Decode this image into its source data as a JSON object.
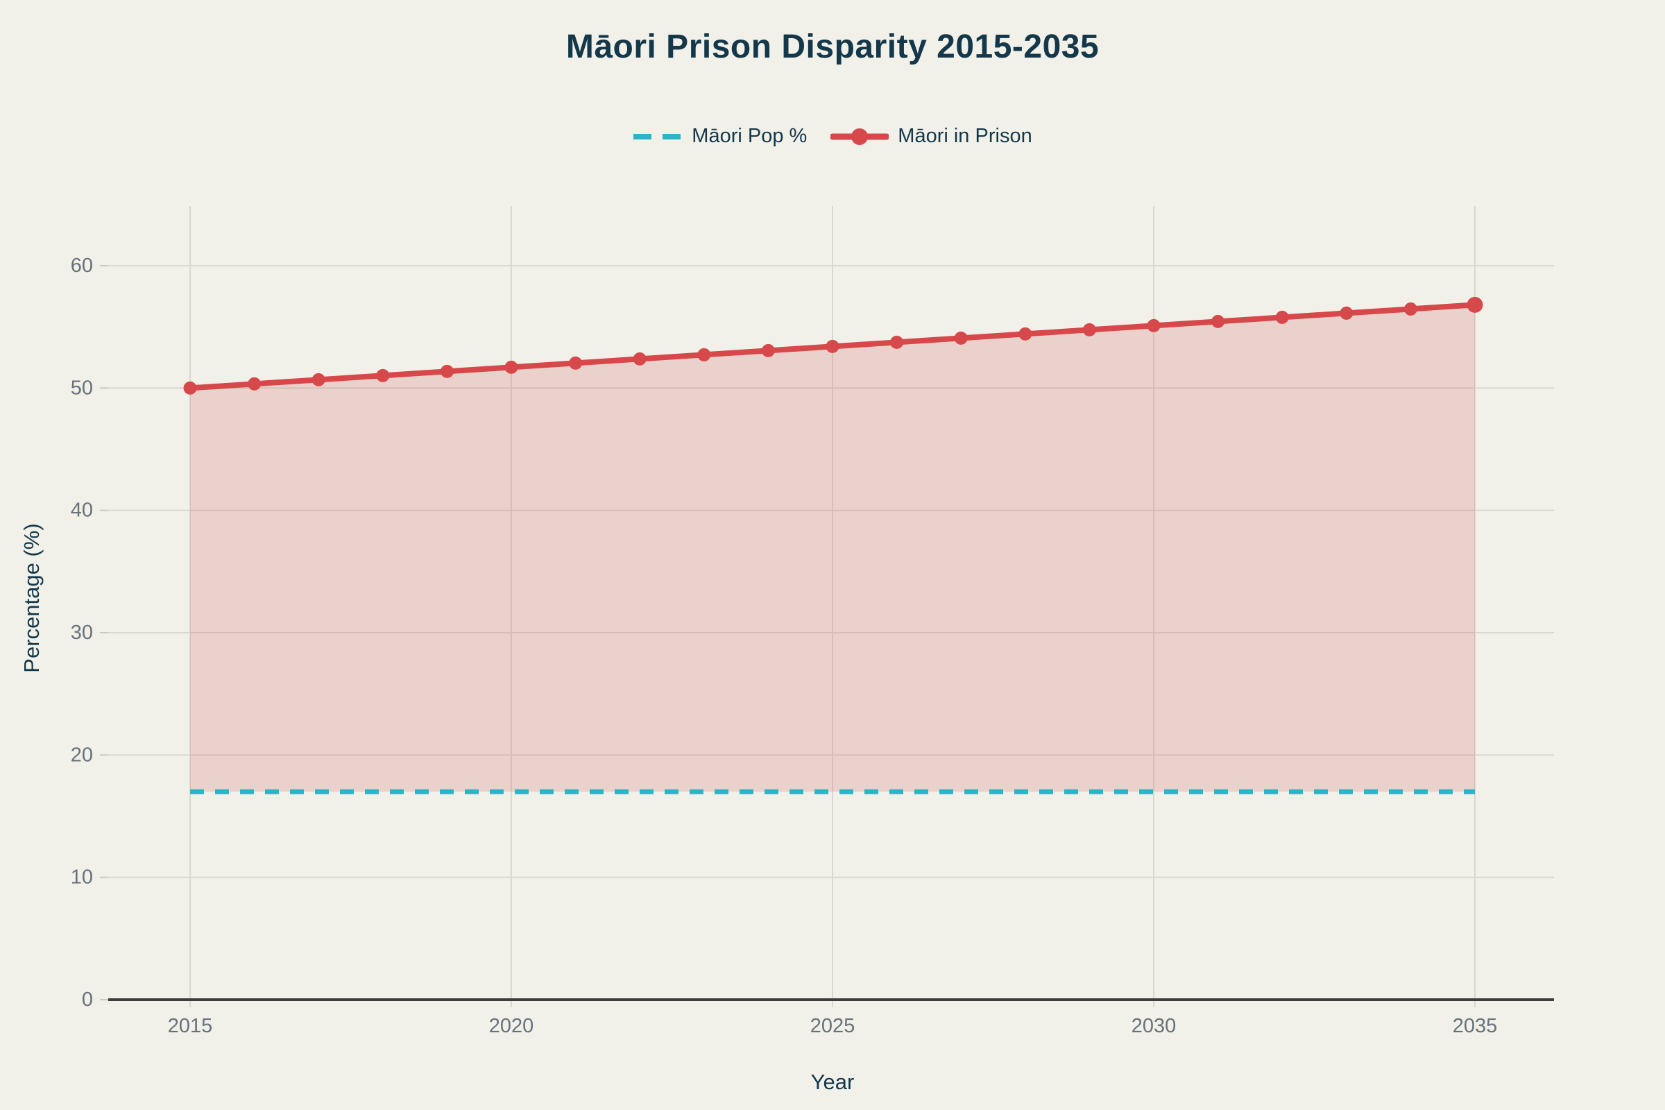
{
  "chart_data": {
    "type": "line",
    "title": "Māori Prison Disparity 2015-2035",
    "xlabel": "Year",
    "ylabel": "Percentage (%)",
    "x": [
      2015,
      2016,
      2017,
      2018,
      2019,
      2020,
      2021,
      2022,
      2023,
      2024,
      2025,
      2026,
      2027,
      2028,
      2029,
      2030,
      2031,
      2032,
      2033,
      2034,
      2035
    ],
    "xticks": [
      2015,
      2020,
      2025,
      2030,
      2035
    ],
    "yticks": [
      0,
      10,
      20,
      30,
      40,
      50,
      60
    ],
    "ylim": [
      0,
      65
    ],
    "grid": true,
    "legend_position": "top-center",
    "series": [
      {
        "name": "Māori Pop %",
        "style": "dashed",
        "color": "#29b5c6",
        "values": [
          17,
          17,
          17,
          17,
          17,
          17,
          17,
          17,
          17,
          17,
          17,
          17,
          17,
          17,
          17,
          17,
          17,
          17,
          17,
          17,
          17
        ]
      },
      {
        "name": "Māori in Prison",
        "style": "solid-markers",
        "color": "#d7484b",
        "values": [
          50,
          50.34,
          50.68,
          51.02,
          51.36,
          51.7,
          52.04,
          52.38,
          52.72,
          53.06,
          53.4,
          53.74,
          54.08,
          54.42,
          54.76,
          55.1,
          55.44,
          55.78,
          56.12,
          56.46,
          56.8
        ]
      }
    ],
    "fill_between": {
      "upper": "Māori in Prison",
      "lower": "Māori Pop %",
      "color": "rgba(215,72,75,0.19)"
    }
  },
  "colors": {
    "background": "#f1f0e9",
    "grid": "#d9d8d0",
    "tick_stub": "#cbcac2",
    "axis_line": "#3e3d3c",
    "tick_text": "#68717a",
    "heading_text": "#14384a"
  }
}
